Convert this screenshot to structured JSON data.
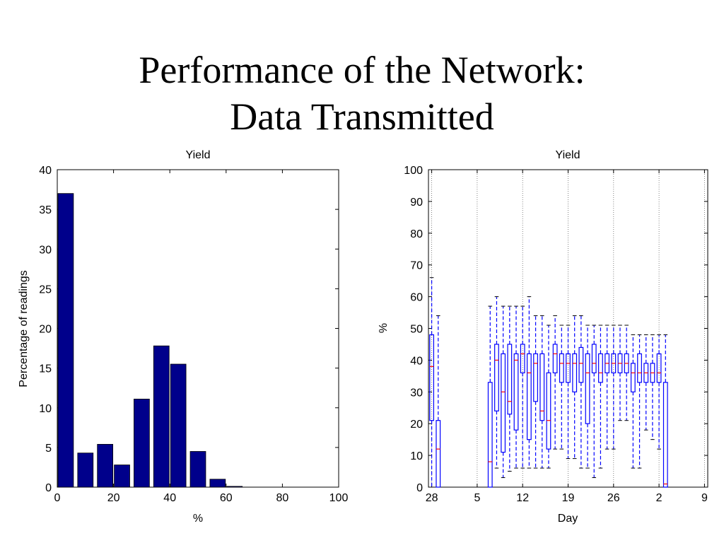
{
  "slide": {
    "title_line1": "Performance of the Network:",
    "title_line2": "Data Transmitted"
  },
  "chart_data": [
    {
      "type": "bar",
      "title": "Yield",
      "xlabel": "%",
      "ylabel": "Percentage of readings",
      "xlim": [
        0,
        100
      ],
      "ylim": [
        0,
        40
      ],
      "xticks": [
        0,
        20,
        40,
        60,
        80,
        100
      ],
      "yticks": [
        0,
        5,
        10,
        15,
        20,
        25,
        30,
        35,
        40
      ],
      "bar_width": 5.5,
      "x": [
        3,
        10,
        17,
        23,
        30,
        37,
        43,
        50,
        57,
        63
      ],
      "values": [
        37,
        4.3,
        5.4,
        2.8,
        11.1,
        17.8,
        15.5,
        4.5,
        1.0,
        0.1
      ],
      "color": "#00008B"
    },
    {
      "type": "box",
      "title": "Yield",
      "xlabel": "Day",
      "ylabel": "%",
      "ylim": [
        0,
        100
      ],
      "yticks": [
        0,
        10,
        20,
        30,
        40,
        50,
        60,
        70,
        80,
        90,
        100
      ],
      "xtick_labels": [
        "28",
        "5",
        "12",
        "19",
        "26",
        "2",
        "9"
      ],
      "xtick_day_index": [
        0,
        7,
        14,
        21,
        28,
        35,
        42
      ],
      "xlim_day_index": [
        -0.5,
        42.5
      ],
      "color": "#0000FF",
      "median_color": "#FF0000",
      "boxes": [
        {
          "day": 0,
          "whislo": 0,
          "q1": 21,
          "med": 38,
          "q3": 48,
          "whishi": 66
        },
        {
          "day": 1,
          "whislo": 0,
          "q1": 0,
          "med": 12,
          "q3": 21,
          "whishi": 54
        },
        {
          "day": 9,
          "whislo": 0,
          "q1": 0,
          "med": 8,
          "q3": 33,
          "whishi": 57
        },
        {
          "day": 10,
          "whislo": 6,
          "q1": 24,
          "med": 40,
          "q3": 45,
          "whishi": 60
        },
        {
          "day": 11,
          "whislo": 3,
          "q1": 11,
          "med": 30,
          "q3": 42,
          "whishi": 57
        },
        {
          "day": 12,
          "whislo": 5,
          "q1": 23,
          "med": 27,
          "q3": 45,
          "whishi": 57
        },
        {
          "day": 13,
          "whislo": 6,
          "q1": 18,
          "med": 40,
          "q3": 42,
          "whishi": 57
        },
        {
          "day": 14,
          "whislo": 6,
          "q1": 36,
          "med": 42,
          "q3": 45,
          "whishi": 57
        },
        {
          "day": 15,
          "whislo": 6,
          "q1": 15,
          "med": 36,
          "q3": 42,
          "whishi": 60
        },
        {
          "day": 16,
          "whislo": 6,
          "q1": 27,
          "med": 39,
          "q3": 42,
          "whishi": 54
        },
        {
          "day": 17,
          "whislo": 6,
          "q1": 21,
          "med": 24,
          "q3": 42,
          "whishi": 54
        },
        {
          "day": 18,
          "whislo": 6,
          "q1": 12,
          "med": 21,
          "q3": 36,
          "whishi": 51
        },
        {
          "day": 19,
          "whislo": 12,
          "q1": 36,
          "med": 42,
          "q3": 45,
          "whishi": 54
        },
        {
          "day": 20,
          "whislo": 12,
          "q1": 33,
          "med": 39,
          "q3": 42,
          "whishi": 51
        },
        {
          "day": 21,
          "whislo": 9,
          "q1": 33,
          "med": 39,
          "q3": 42,
          "whishi": 51
        },
        {
          "day": 22,
          "whislo": 9,
          "q1": 30,
          "med": 39,
          "q3": 42,
          "whishi": 54
        },
        {
          "day": 23,
          "whislo": 6,
          "q1": 33,
          "med": 39,
          "q3": 44,
          "whishi": 54
        },
        {
          "day": 24,
          "whislo": 6,
          "q1": 20,
          "med": 36,
          "q3": 42,
          "whishi": 51
        },
        {
          "day": 25,
          "whislo": 3,
          "q1": 36,
          "med": 39,
          "q3": 45,
          "whishi": 51
        },
        {
          "day": 26,
          "whislo": 6,
          "q1": 33,
          "med": 36,
          "q3": 42,
          "whishi": 51
        },
        {
          "day": 27,
          "whislo": 12,
          "q1": 36,
          "med": 39,
          "q3": 42,
          "whishi": 51
        },
        {
          "day": 28,
          "whislo": 12,
          "q1": 36,
          "med": 39,
          "q3": 42,
          "whishi": 51
        },
        {
          "day": 29,
          "whislo": 21,
          "q1": 36,
          "med": 39,
          "q3": 42,
          "whishi": 51
        },
        {
          "day": 30,
          "whislo": 21,
          "q1": 36,
          "med": 39,
          "q3": 42,
          "whishi": 51
        },
        {
          "day": 31,
          "whislo": 6,
          "q1": 30,
          "med": 36,
          "q3": 39,
          "whishi": 48
        },
        {
          "day": 32,
          "whislo": 6,
          "q1": 33,
          "med": 36,
          "q3": 42,
          "whishi": 48
        },
        {
          "day": 33,
          "whislo": 18,
          "q1": 33,
          "med": 36,
          "q3": 39,
          "whishi": 48
        },
        {
          "day": 34,
          "whislo": 15,
          "q1": 33,
          "med": 36,
          "q3": 39,
          "whishi": 48
        },
        {
          "day": 35,
          "whislo": 12,
          "q1": 33,
          "med": 36,
          "q3": 42,
          "whishi": 48
        },
        {
          "day": 36,
          "whislo": 0,
          "q1": 0,
          "med": 1,
          "q3": 33,
          "whishi": 48
        }
      ]
    }
  ]
}
